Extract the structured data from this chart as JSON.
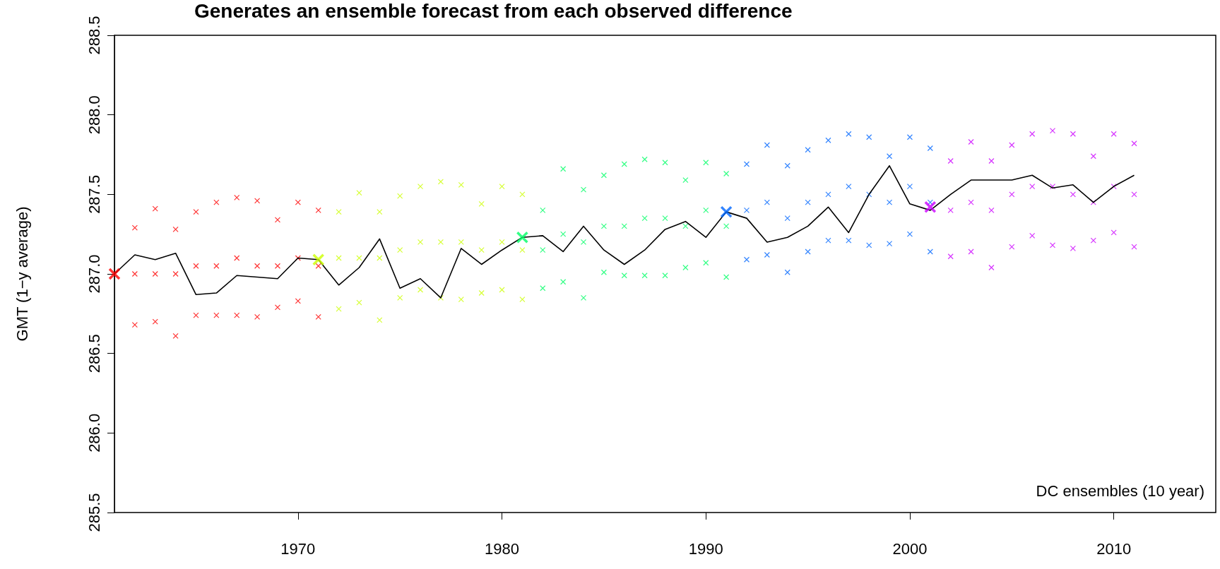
{
  "chart_data": {
    "type": "scatter",
    "title": "Generates an ensemble forecast from each observed difference",
    "ylabel": "GMT (1−y average)",
    "annotations": [
      "DC ensembles (10 year)"
    ],
    "xlim": [
      1961,
      2015
    ],
    "xticks": [
      1970,
      1980,
      1990,
      2000,
      2010
    ],
    "ylim": [
      285.5,
      288.5
    ],
    "yticks": [
      {
        "value": 285.5,
        "label": "285.5"
      },
      {
        "value": 286,
        "label": "286.0"
      },
      {
        "value": 286.5,
        "label": "286.5"
      },
      {
        "value": 287,
        "label": "287.0"
      },
      {
        "value": 287.5,
        "label": "287.5"
      },
      {
        "value": 288,
        "label": "288.0"
      },
      {
        "value": 288.5,
        "label": "288.5"
      }
    ],
    "grid": false,
    "marker": "cross",
    "series": [
      {
        "color": "#ff0000",
        "x": [
          1962,
          1962,
          1962,
          1963,
          1963,
          1963,
          1964,
          1964,
          1964,
          1965,
          1965,
          1965,
          1966,
          1966,
          1966,
          1967,
          1967,
          1967,
          1968,
          1968,
          1968,
          1969,
          1969,
          1969,
          1970,
          1970,
          1970,
          1971,
          1971,
          1971
        ],
        "values": [
          287.29,
          287.0,
          286.68,
          287.41,
          287.0,
          286.7,
          287.28,
          287.0,
          286.61,
          287.39,
          287.05,
          286.74,
          287.45,
          287.05,
          286.74,
          287.48,
          287.1,
          286.74,
          287.46,
          287.05,
          286.73,
          287.34,
          287.05,
          286.79,
          287.45,
          287.1,
          286.83,
          287.4,
          287.05,
          286.73
        ]
      },
      {
        "color": "#ccff00",
        "x": [
          1972,
          1972,
          1972,
          1973,
          1973,
          1973,
          1974,
          1974,
          1974,
          1975,
          1975,
          1975,
          1976,
          1976,
          1976,
          1977,
          1977,
          1977,
          1978,
          1978,
          1978,
          1979,
          1979,
          1979,
          1980,
          1980,
          1980,
          1981,
          1981,
          1981
        ],
        "values": [
          287.39,
          287.1,
          286.78,
          287.51,
          287.1,
          286.82,
          287.39,
          287.1,
          286.71,
          287.49,
          287.15,
          286.85,
          287.55,
          287.2,
          286.9,
          287.58,
          287.2,
          286.85,
          287.56,
          287.2,
          286.84,
          287.44,
          287.15,
          286.88,
          287.55,
          287.2,
          286.9,
          287.5,
          287.15,
          286.84
        ]
      },
      {
        "color": "#00ff66",
        "x": [
          1982,
          1982,
          1982,
          1983,
          1983,
          1983,
          1984,
          1984,
          1984,
          1985,
          1985,
          1985,
          1986,
          1986,
          1986,
          1987,
          1987,
          1987,
          1988,
          1988,
          1988,
          1989,
          1989,
          1989,
          1990,
          1990,
          1990,
          1991,
          1991,
          1991
        ],
        "values": [
          287.4,
          287.15,
          286.91,
          287.66,
          287.25,
          286.95,
          287.53,
          287.2,
          286.85,
          287.62,
          287.3,
          287.01,
          287.69,
          287.3,
          286.99,
          287.72,
          287.35,
          286.99,
          287.7,
          287.35,
          286.99,
          287.59,
          287.3,
          287.04,
          287.7,
          287.4,
          287.07,
          287.63,
          287.3,
          286.98
        ]
      },
      {
        "color": "#0066ff",
        "x": [
          1992,
          1992,
          1992,
          1993,
          1993,
          1993,
          1994,
          1994,
          1994,
          1995,
          1995,
          1995,
          1996,
          1996,
          1996,
          1997,
          1997,
          1997,
          1998,
          1998,
          1998,
          1999,
          1999,
          1999,
          2000,
          2000,
          2000,
          2001,
          2001,
          2001
        ],
        "values": [
          287.69,
          287.4,
          287.09,
          287.81,
          287.45,
          287.12,
          287.68,
          287.35,
          287.01,
          287.78,
          287.45,
          287.14,
          287.84,
          287.5,
          287.21,
          287.88,
          287.55,
          287.21,
          287.86,
          287.5,
          287.18,
          287.74,
          287.45,
          287.19,
          287.86,
          287.55,
          287.25,
          287.79,
          287.45,
          287.14
        ]
      },
      {
        "color": "#cc00ff",
        "x": [
          2002,
          2002,
          2002,
          2003,
          2003,
          2003,
          2004,
          2004,
          2004,
          2005,
          2005,
          2005,
          2006,
          2006,
          2006,
          2007,
          2007,
          2007,
          2008,
          2008,
          2008,
          2009,
          2009,
          2009,
          2010,
          2010,
          2010,
          2011,
          2011,
          2011
        ],
        "values": [
          287.71,
          287.4,
          287.11,
          287.83,
          287.45,
          287.14,
          287.71,
          287.4,
          287.04,
          287.81,
          287.5,
          287.17,
          287.88,
          287.55,
          287.24,
          287.9,
          287.55,
          287.18,
          287.88,
          287.5,
          287.16,
          287.74,
          287.45,
          287.21,
          287.88,
          287.55,
          287.26,
          287.82,
          287.5,
          287.17
        ]
      },
      {
        "type": "line",
        "marker": "none",
        "color": "#000000",
        "x": [
          1961,
          1962,
          1963,
          1964,
          1965,
          1966,
          1967,
          1968,
          1969,
          1970,
          1971,
          1972,
          1973,
          1974,
          1975,
          1976,
          1977,
          1978,
          1979,
          1980,
          1981,
          1982,
          1983,
          1984,
          1985,
          1986,
          1987,
          1988,
          1989,
          1990,
          1991,
          1992,
          1993,
          1994,
          1995,
          1996,
          1997,
          1998,
          1999,
          2000,
          2001,
          2002,
          2003,
          2004,
          2005,
          2006,
          2007,
          2008,
          2009,
          2010,
          2011
        ],
        "values": [
          287.0,
          287.12,
          287.09,
          287.13,
          286.87,
          286.88,
          286.99,
          286.98,
          286.97,
          287.1,
          287.09,
          286.93,
          287.04,
          287.22,
          286.91,
          286.97,
          286.85,
          287.16,
          287.06,
          287.15,
          287.23,
          287.24,
          287.14,
          287.3,
          287.15,
          287.06,
          287.15,
          287.28,
          287.33,
          287.23,
          287.39,
          287.35,
          287.2,
          287.23,
          287.3,
          287.42,
          287.26,
          287.5,
          287.68,
          287.44,
          287.4,
          287.5,
          287.59,
          287.59,
          287.59,
          287.62,
          287.54,
          287.56,
          287.45,
          287.55,
          287.62
        ]
      },
      {
        "x": [
          1961,
          1971,
          1981,
          1991,
          2001
        ],
        "values": [
          287.0,
          287.09,
          287.23,
          287.39,
          287.42
        ],
        "colors": [
          "#ff0000",
          "#ccff00",
          "#00ff66",
          "#0066ff",
          "#cc00ff"
        ]
      }
    ]
  }
}
